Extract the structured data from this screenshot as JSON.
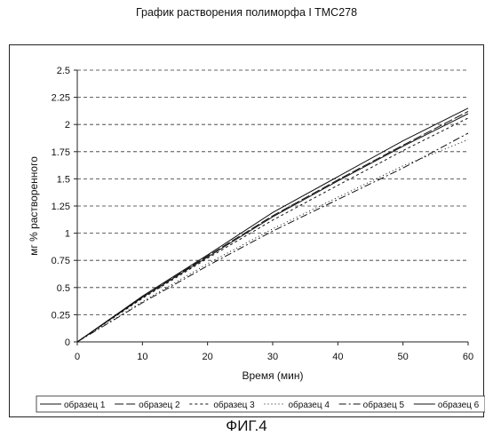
{
  "figure_caption": "ФИГ.4",
  "chart_data": {
    "type": "line",
    "title": "График растворения полиморфа I TMC278",
    "xlabel": "Время (мин)",
    "ylabel": "мг % растворенного",
    "xlim": [
      0,
      60
    ],
    "ylim": [
      0,
      2.5
    ],
    "xticks": [
      "0",
      "10",
      "20",
      "30",
      "40",
      "50",
      "60"
    ],
    "yticks": [
      "0",
      "0.25",
      "0.5",
      "0.75",
      "1",
      "1.25",
      "1.5",
      "1.75",
      "2",
      "2.25",
      "2.5"
    ],
    "grid": "horizontal dashed",
    "legend_position": "bottom",
    "x": [
      0,
      10,
      20,
      30,
      40,
      50,
      60
    ],
    "series": [
      {
        "name": "образец 1",
        "dash": "",
        "values": [
          0,
          0.42,
          0.8,
          1.19,
          1.52,
          1.85,
          2.15
        ]
      },
      {
        "name": "образец 2",
        "dash": "10 3",
        "values": [
          0,
          0.41,
          0.79,
          1.16,
          1.49,
          1.81,
          2.12
        ]
      },
      {
        "name": "образец 3",
        "dash": "3 3",
        "values": [
          0,
          0.4,
          0.77,
          1.12,
          1.44,
          1.76,
          2.06
        ]
      },
      {
        "name": "образец 4",
        "dash": "1 3",
        "values": [
          0,
          0.37,
          0.72,
          1.04,
          1.33,
          1.62,
          1.86
        ]
      },
      {
        "name": "образец 5",
        "dash": "8 3 2 3",
        "values": [
          0,
          0.36,
          0.7,
          1.02,
          1.31,
          1.6,
          1.92
        ]
      },
      {
        "name": "образец 6",
        "dash": "",
        "values": [
          0,
          0.41,
          0.78,
          1.15,
          1.48,
          1.8,
          2.1
        ]
      }
    ]
  }
}
